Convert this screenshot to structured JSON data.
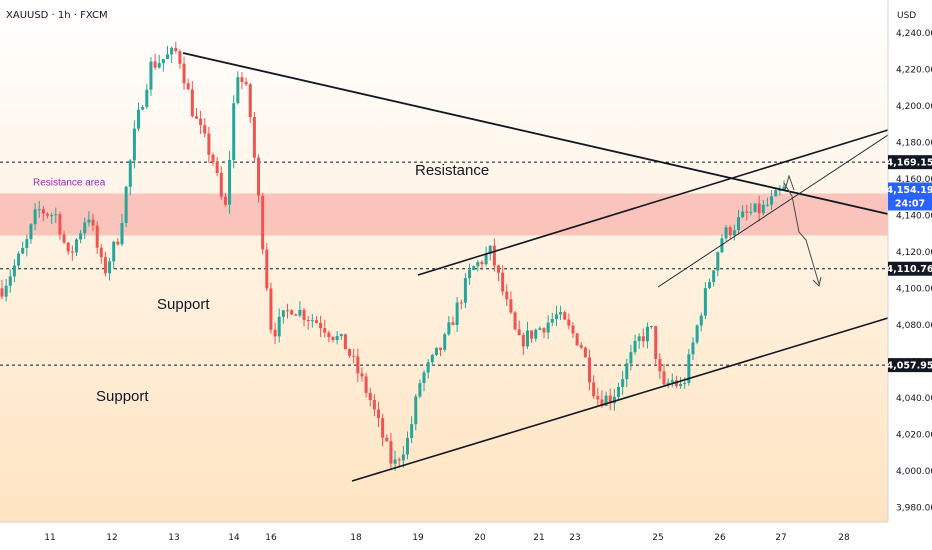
{
  "symbol": "XAUUSD · 1h · FXCM",
  "currency": "USD",
  "colors": {
    "up": "#26a69a",
    "down": "#ef5350",
    "zone": "#f8b4ad",
    "last_price_bg": "#2962ff",
    "bg_top": "#ffffff",
    "bg_bottom": "#ffe4c2"
  },
  "chart_data": {
    "type": "candlestick",
    "ylim": [
      3972,
      4258
    ],
    "y_ticks": [
      3980,
      4000,
      4020,
      4040,
      4060,
      4080,
      4100,
      4120,
      4140,
      4160,
      4180,
      4200,
      4220,
      4240
    ],
    "x_ticks": [
      "11",
      "12",
      "13",
      "14",
      "16",
      "18",
      "19",
      "20",
      "21",
      "23",
      "25",
      "26",
      "27",
      "28"
    ],
    "price_labels": [
      {
        "value": 4169.15,
        "text": "4,169.15"
      },
      {
        "value": 4110.76,
        "text": "4,110.76"
      },
      {
        "value": 4057.95,
        "text": "4,057.95"
      }
    ],
    "last_price": {
      "value": 4154.19,
      "text": "4,154.19",
      "countdown": "24:07"
    },
    "resistance_zone": {
      "from": 4129,
      "to": 4152,
      "label": "Resistance area"
    },
    "horizontal_levels": [
      4169.15,
      4110.76,
      4057.95
    ],
    "annotations": [
      {
        "text": "Resistance"
      },
      {
        "text": "Support"
      },
      {
        "text": "Support"
      }
    ],
    "close_path_anchors": [
      [
        0,
        4100
      ],
      [
        0.03,
        4123
      ],
      [
        0.045,
        4143
      ],
      [
        0.07,
        4140
      ],
      [
        0.085,
        4116
      ],
      [
        0.11,
        4142
      ],
      [
        0.13,
        4108
      ],
      [
        0.15,
        4130
      ],
      [
        0.17,
        4186
      ],
      [
        0.19,
        4222
      ],
      [
        0.225,
        4230
      ],
      [
        0.245,
        4195
      ],
      [
        0.27,
        4170
      ],
      [
        0.285,
        4140
      ],
      [
        0.3,
        4220
      ],
      [
        0.315,
        4205
      ],
      [
        0.345,
        4075
      ],
      [
        0.37,
        4090
      ],
      [
        0.41,
        4080
      ],
      [
        0.44,
        4068
      ],
      [
        0.47,
        4040
      ],
      [
        0.5,
        4002
      ],
      [
        0.52,
        4018
      ],
      [
        0.535,
        4050
      ],
      [
        0.565,
        4070
      ],
      [
        0.6,
        4110
      ],
      [
        0.625,
        4120
      ],
      [
        0.66,
        4070
      ],
      [
        0.71,
        4085
      ],
      [
        0.74,
        4070
      ],
      [
        0.76,
        4040
      ],
      [
        0.78,
        4040
      ],
      [
        0.815,
        4072
      ],
      [
        0.83,
        4078
      ],
      [
        0.845,
        4043
      ],
      [
        0.855,
        4050
      ],
      [
        0.87,
        4045
      ],
      [
        0.895,
        4090
      ],
      [
        0.92,
        4128
      ],
      [
        0.95,
        4140
      ],
      [
        0.975,
        4144
      ],
      [
        1.0,
        4154
      ]
    ]
  }
}
